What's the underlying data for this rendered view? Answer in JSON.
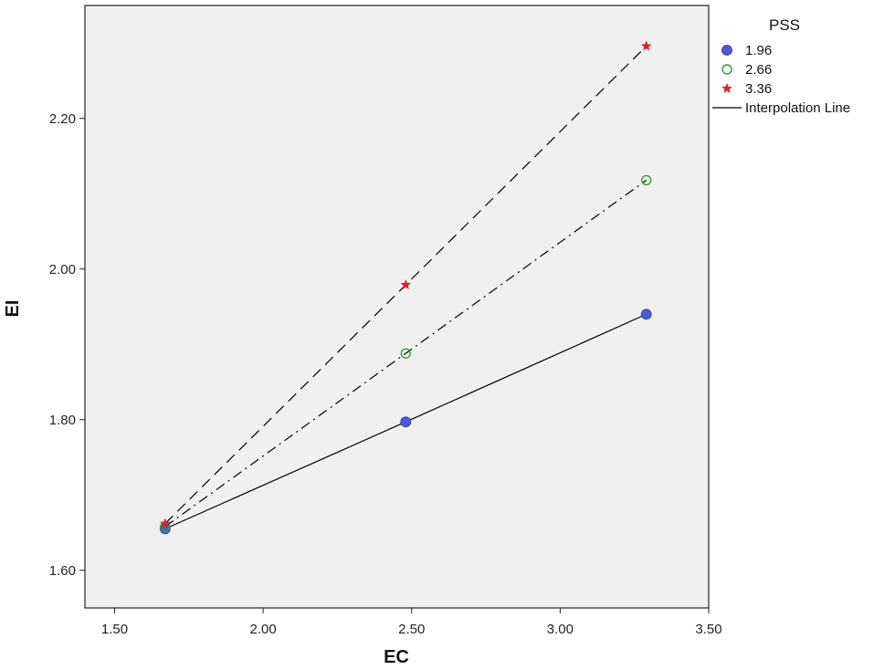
{
  "chart_data": {
    "type": "line",
    "xlabel": "EC",
    "ylabel": "EI",
    "xlim": [
      1.4,
      3.5
    ],
    "ylim": [
      1.55,
      2.35
    ],
    "x_ticks": [
      1.5,
      2.0,
      2.5,
      3.0,
      3.5
    ],
    "x_tick_labels": [
      "1.50",
      "2.00",
      "2.50",
      "3.00",
      "3.50"
    ],
    "y_ticks": [
      1.6,
      1.8,
      2.0,
      2.2
    ],
    "y_tick_labels": [
      "1.60",
      "1.80",
      "2.00",
      "2.20"
    ],
    "grid": false,
    "legend_position": "right",
    "legend": {
      "title": "PSS",
      "interpolation_label": "Interpolation Line"
    },
    "series": [
      {
        "name": "1.96",
        "marker": "filled-circle",
        "color": "#4a5bd6",
        "line_style": "solid",
        "x": [
          1.67,
          2.48,
          3.29
        ],
        "y": [
          1.655,
          1.797,
          1.94
        ]
      },
      {
        "name": "2.66",
        "marker": "open-circle",
        "color": "#2ca02c",
        "line_style": "dash-dot",
        "x": [
          1.67,
          2.48,
          3.29
        ],
        "y": [
          1.658,
          1.888,
          2.118
        ]
      },
      {
        "name": "3.36",
        "marker": "star",
        "color": "#e0202a",
        "line_style": "dashed",
        "x": [
          1.67,
          2.48,
          3.29
        ],
        "y": [
          1.662,
          1.979,
          2.296
        ]
      }
    ]
  }
}
